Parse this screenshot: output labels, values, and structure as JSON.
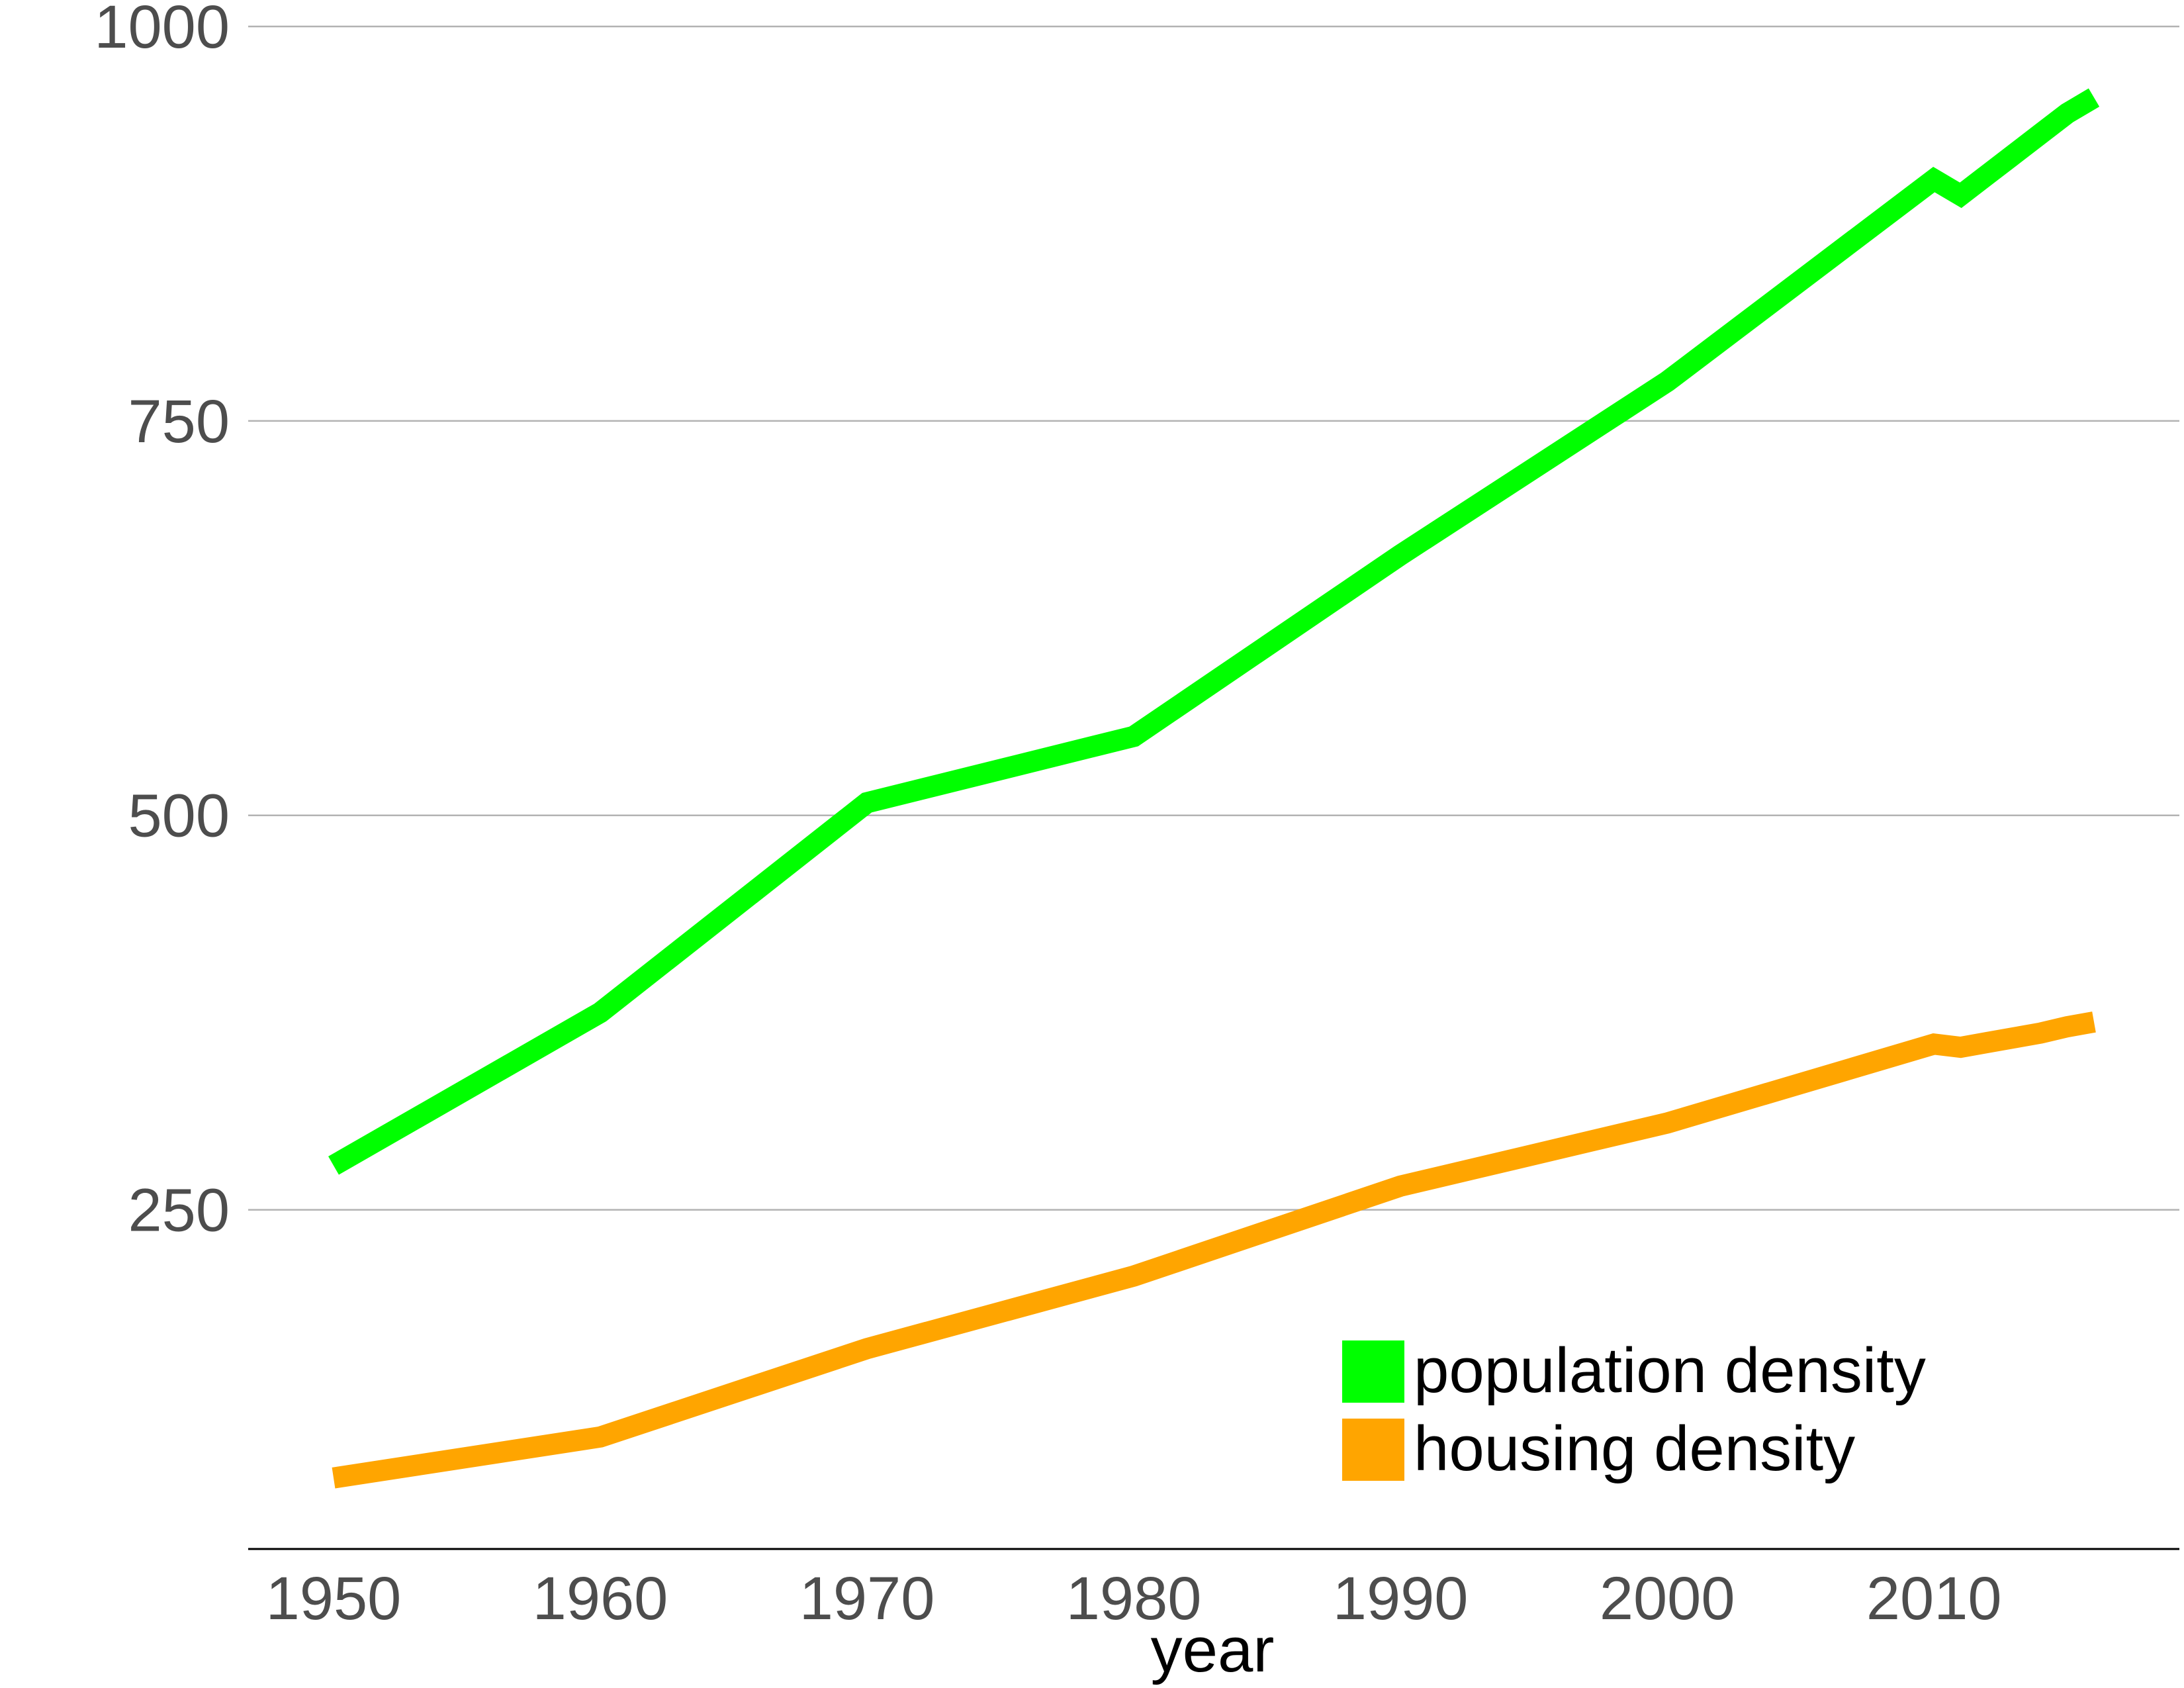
{
  "chart_data": {
    "type": "line",
    "title": "",
    "xlabel": "year",
    "ylabel": "",
    "xlim": [
      1946.8,
      2019.2
    ],
    "ylim": [
      35,
      1000
    ],
    "xticks": [
      1950,
      1960,
      1970,
      1980,
      1990,
      2000,
      2010
    ],
    "yticks": [
      250,
      500,
      750,
      1000
    ],
    "grid": "horizontal",
    "legend_position": "bottom-right",
    "series": [
      {
        "name": "population density",
        "color": "#00ff00",
        "points": [
          {
            "x": 1950,
            "y": 278
          },
          {
            "x": 1960,
            "y": 375
          },
          {
            "x": 1970,
            "y": 508
          },
          {
            "x": 1980,
            "y": 550
          },
          {
            "x": 1990,
            "y": 665
          },
          {
            "x": 2000,
            "y": 775
          },
          {
            "x": 2010,
            "y": 903
          },
          {
            "x": 2011,
            "y": 893
          },
          {
            "x": 2012,
            "y": 906
          },
          {
            "x": 2013,
            "y": 919
          },
          {
            "x": 2014,
            "y": 932
          },
          {
            "x": 2015,
            "y": 945
          },
          {
            "x": 2016,
            "y": 955
          }
        ]
      },
      {
        "name": "housing density",
        "color": "#ffa500",
        "points": [
          {
            "x": 1950,
            "y": 80
          },
          {
            "x": 1960,
            "y": 106
          },
          {
            "x": 1970,
            "y": 162
          },
          {
            "x": 1980,
            "y": 208
          },
          {
            "x": 1990,
            "y": 265
          },
          {
            "x": 2000,
            "y": 305
          },
          {
            "x": 2010,
            "y": 355
          },
          {
            "x": 2011,
            "y": 353
          },
          {
            "x": 2012,
            "y": 356
          },
          {
            "x": 2013,
            "y": 359
          },
          {
            "x": 2014,
            "y": 362
          },
          {
            "x": 2015,
            "y": 366
          },
          {
            "x": 2016,
            "y": 369
          }
        ]
      }
    ]
  }
}
